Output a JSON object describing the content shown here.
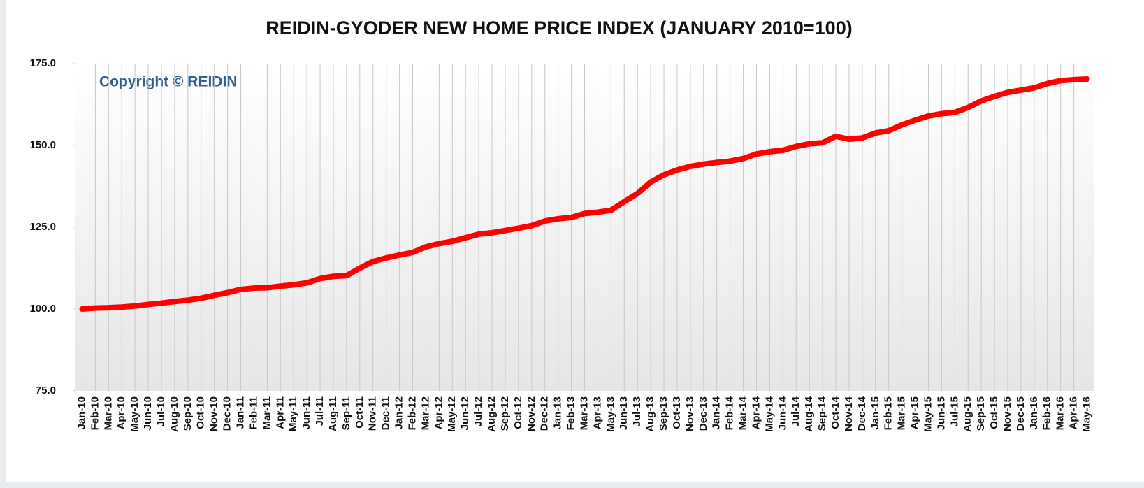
{
  "chart_data": {
    "type": "line",
    "title": "REIDIN-GYODER  NEW HOME PRICE INDEX (JANUARY  2010=100)",
    "annotation": "Copyright © REIDIN",
    "categories": [
      "Jan-10",
      "Feb-10",
      "Mar-10",
      "Apr-10",
      "May-10",
      "Jun-10",
      "Jul-10",
      "Aug-10",
      "Sep-10",
      "Oct-10",
      "Nov-10",
      "Dec-10",
      "Jan-11",
      "Feb-11",
      "Mar-11",
      "Apr-11",
      "May-11",
      "Jun-11",
      "Jul-11",
      "Aug-11",
      "Sep-11",
      "Oct-11",
      "Nov-11",
      "Dec-11",
      "Jan-12",
      "Feb-12",
      "Mar-12",
      "Apr-12",
      "May-12",
      "Jun-12",
      "Jul-12",
      "Aug-12",
      "Sep-12",
      "Oct-12",
      "Nov-12",
      "Dec-12",
      "Jan-13",
      "Feb-13",
      "Mar-13",
      "Apr-13",
      "May-13",
      "Jun-13",
      "Jul-13",
      "Aug-13",
      "Sep-13",
      "Oct-13",
      "Nov-13",
      "Dec-13",
      "Jan-14",
      "Feb-14",
      "Mar-14",
      "Apr-14",
      "May-14",
      "Jun-14",
      "Jul-14",
      "Aug-14",
      "Sep-14",
      "Oct-14",
      "Nov-14",
      "Dec-14",
      "Jan-15",
      "Feb-15",
      "Mar-15",
      "Apr-15",
      "May-15",
      "Jun-15",
      "Jul-15",
      "Aug-15",
      "Sep-15",
      "Oct-15",
      "Nov-15",
      "Dec-15",
      "Jan-16",
      "Feb-16",
      "Mar-16",
      "Apr-16",
      "May-16"
    ],
    "values": [
      100.0,
      100.3,
      100.4,
      100.6,
      100.9,
      101.4,
      101.8,
      102.3,
      102.7,
      103.3,
      104.2,
      105.0,
      106.0,
      106.4,
      106.5,
      107.0,
      107.4,
      108.0,
      109.3,
      110.0,
      110.2,
      112.5,
      114.5,
      115.6,
      116.5,
      117.3,
      119.0,
      120.0,
      120.7,
      121.8,
      122.9,
      123.3,
      124.0,
      124.7,
      125.5,
      126.9,
      127.6,
      128.0,
      129.2,
      129.6,
      130.2,
      132.8,
      135.3,
      138.8,
      141.0,
      142.5,
      143.6,
      144.3,
      144.8,
      145.2,
      146.0,
      147.4,
      148.1,
      148.5,
      149.7,
      150.5,
      150.8,
      152.8,
      151.9,
      152.3,
      153.8,
      154.5,
      156.3,
      157.7,
      159.0,
      159.7,
      160.1,
      161.6,
      163.6,
      165.0,
      166.2,
      166.9,
      167.6,
      168.9,
      169.8,
      170.1,
      170.3
    ],
    "color": "#ff0000",
    "ylim": [
      75,
      175
    ],
    "yticks": [
      {
        "value": 75,
        "label": "75.0"
      },
      {
        "value": 100,
        "label": "100.0"
      },
      {
        "value": 125,
        "label": "125.0"
      },
      {
        "value": 150,
        "label": "150.0"
      },
      {
        "value": 175,
        "label": "175.0"
      }
    ],
    "grid": true
  }
}
